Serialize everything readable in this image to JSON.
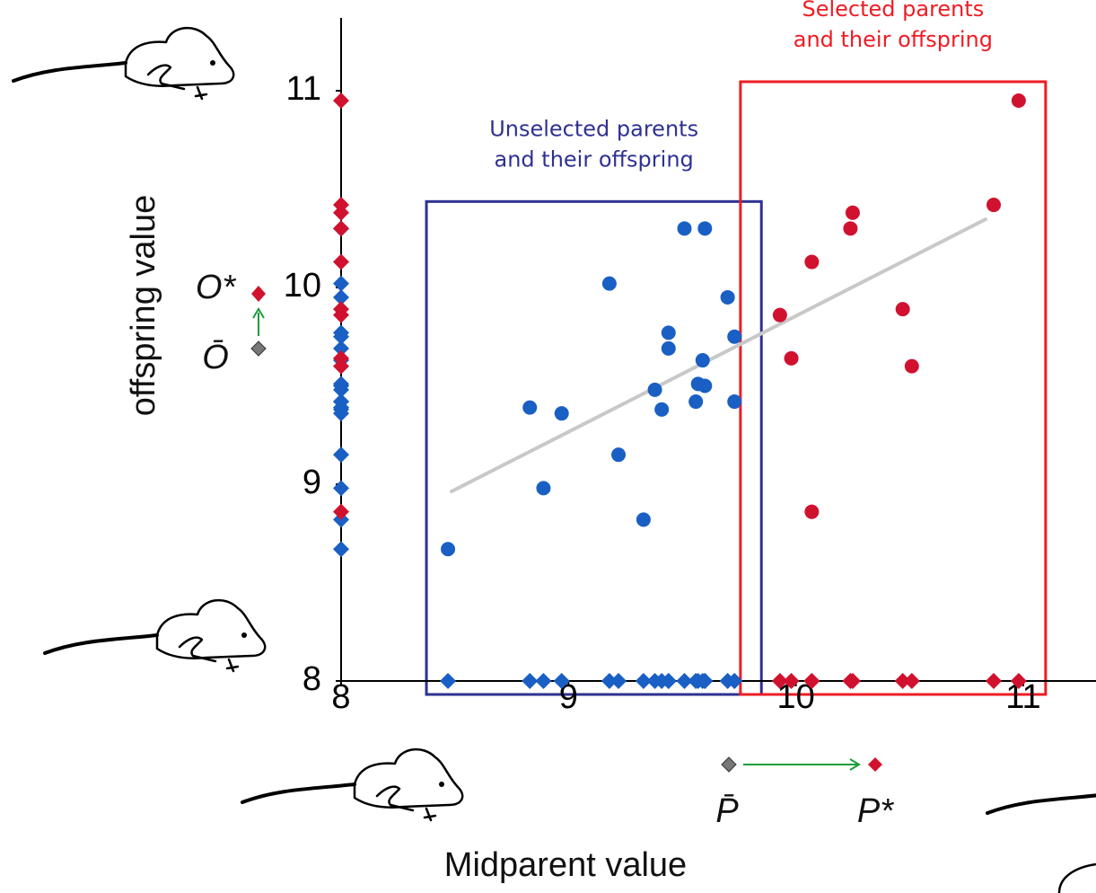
{
  "chart_data": {
    "type": "scatter",
    "x_label": "Midparent value",
    "y_label": "offspring value",
    "xlim": [
      8,
      11.32
    ],
    "ylim": [
      8,
      11.37
    ],
    "xticks": [
      8,
      9,
      10,
      11
    ],
    "yticks": [
      8,
      9,
      10,
      11
    ],
    "series": [
      {
        "color": "#1a5fc4",
        "x": [
          8.47,
          8.83,
          8.97,
          8.89,
          9.18,
          9.22,
          9.33,
          9.38,
          9.41,
          9.44,
          9.44,
          9.51,
          9.6,
          9.59,
          9.57,
          9.6,
          9.56,
          9.7,
          9.73,
          9.73
        ],
        "values": [
          8.67,
          9.39,
          9.36,
          8.98,
          10.02,
          9.15,
          8.82,
          9.48,
          9.38,
          9.77,
          9.69,
          10.3,
          10.3,
          9.63,
          9.51,
          9.5,
          9.42,
          9.95,
          9.75,
          9.42
        ]
      },
      {
        "color": "#d0122f",
        "x": [
          9.93,
          9.98,
          10.07,
          10.07,
          10.25,
          10.24,
          10.47,
          10.51,
          10.87,
          10.98
        ],
        "values": [
          9.86,
          9.64,
          10.13,
          8.86,
          10.38,
          10.3,
          9.89,
          9.6,
          10.42,
          10.95
        ]
      }
    ],
    "trend_line": {
      "color": "#c8c8c8",
      "x": [
        8.48,
        10.84
      ],
      "values": [
        8.96,
        10.35
      ]
    },
    "annotations": [
      {
        "lines": [
          "Unselected parents",
          "and their offspring"
        ],
        "color": "#2e3192"
      },
      {
        "lines": [
          "Selected parents",
          "and their offspring"
        ],
        "color": "#ee1c24"
      }
    ],
    "symbols": {
      "o_star": "O*",
      "o_bar": "Ō",
      "p_bar": "P̄",
      "p_star": "P*"
    }
  }
}
